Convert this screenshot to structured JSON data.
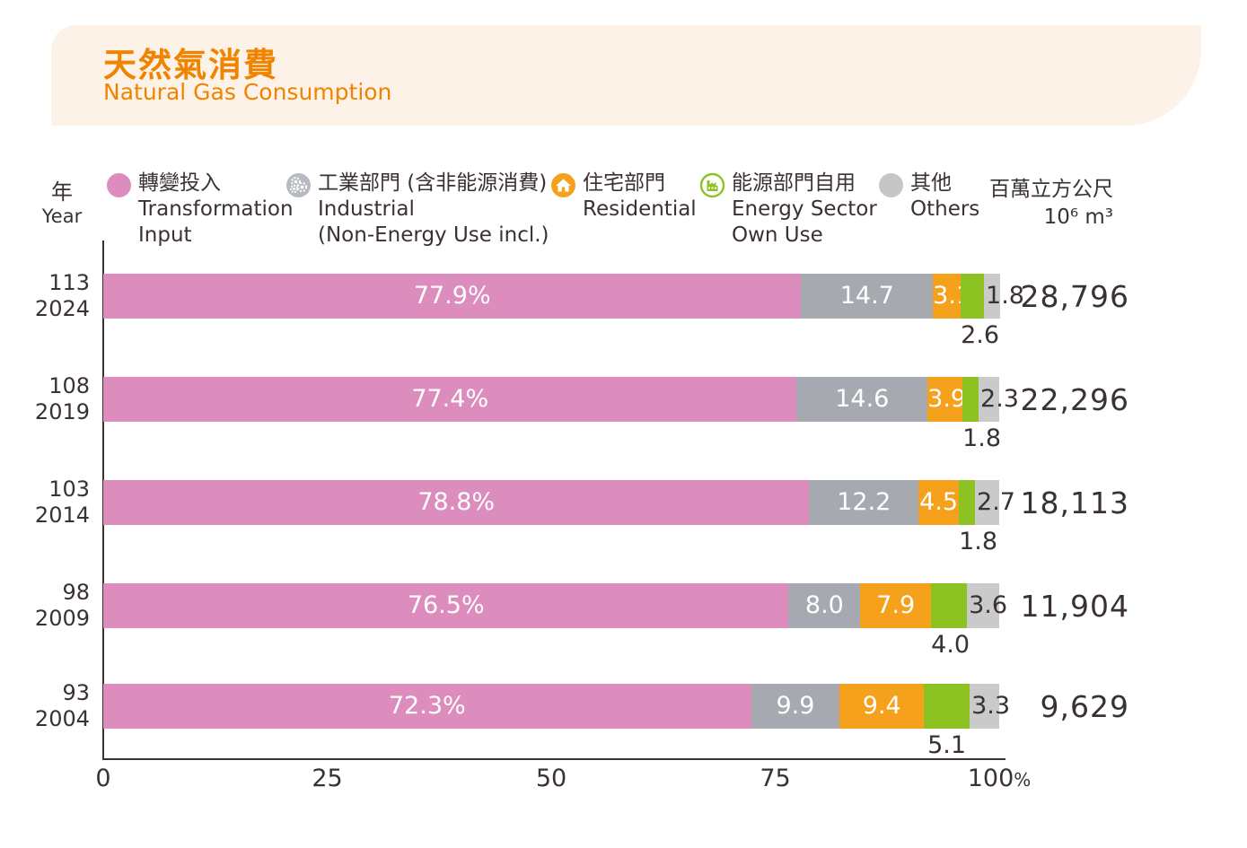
{
  "header": {
    "title_zh": "天然氣消費",
    "title_en": "Natural Gas Consumption"
  },
  "year_axis": {
    "zh": "年",
    "en": "Year"
  },
  "unit_label": {
    "zh": "百萬立方公尺",
    "en": "10⁶ m³"
  },
  "legend": [
    {
      "key": "transformation-input",
      "marker": "circle",
      "color": "#dc8dbe",
      "lines": [
        "轉變投入",
        "Transformation",
        "Input"
      ]
    },
    {
      "key": "industrial",
      "marker": "gears",
      "color": "#b7bbc1",
      "lines": [
        "工業部門 (含非能源消費)",
        "Industrial",
        "(Non-Energy Use incl.)"
      ]
    },
    {
      "key": "residential",
      "marker": "house",
      "color": "#f5a11b",
      "lines": [
        "住宅部門",
        "Residential"
      ]
    },
    {
      "key": "energy-sector-own-use",
      "marker": "factory",
      "color": "#8cc322",
      "lines": [
        "能源部門自用",
        "Energy Sector",
        "Own Use"
      ]
    },
    {
      "key": "others",
      "marker": "circle",
      "color": "#c6c6c6",
      "lines": [
        "其他",
        "Others"
      ]
    }
  ],
  "chart_data": {
    "type": "bar",
    "orientation": "horizontal-stacked",
    "title": "天然氣消費 Natural Gas Consumption",
    "value_unit": "percent share (%)",
    "total_unit": "百萬立方公尺 10⁶ m³",
    "xlim": [
      0,
      100
    ],
    "x_ticks": [
      0,
      25,
      50,
      75,
      100
    ],
    "x_tick_suffix": "%",
    "legend_position": "top",
    "series_names": [
      "轉變投入 Transformation Input",
      "工業部門(含非能源消費) Industrial (Non-Energy Use incl.)",
      "住宅部門 Residential",
      "能源部門自用 Energy Sector Own Use",
      "其他 Others"
    ],
    "series_keys": [
      "transformation-input",
      "industrial",
      "residential",
      "energy-sector-own-use",
      "others"
    ],
    "segment_colors": [
      "#dc8dbe",
      "#a6aab0",
      "#f5a11b",
      "#8cc322",
      "#cacaca"
    ],
    "rows": [
      {
        "year_roc": "113",
        "year_ad": "2024",
        "values": [
          77.9,
          14.7,
          3.1,
          2.6,
          1.8
        ],
        "labels": [
          "77.9%",
          "14.7",
          "3.1",
          "2.6",
          "1.8"
        ],
        "total": "28,796"
      },
      {
        "year_roc": "108",
        "year_ad": "2019",
        "values": [
          77.4,
          14.6,
          3.9,
          1.8,
          2.3
        ],
        "labels": [
          "77.4%",
          "14.6",
          "3.9",
          "1.8",
          "2.3"
        ],
        "total": "22,296"
      },
      {
        "year_roc": "103",
        "year_ad": "2014",
        "values": [
          78.8,
          12.2,
          4.5,
          1.8,
          2.7
        ],
        "labels": [
          "78.8%",
          "12.2",
          "4.5",
          "1.8",
          "2.7"
        ],
        "total": "18,113"
      },
      {
        "year_roc": "98",
        "year_ad": "2009",
        "values": [
          76.5,
          8.0,
          7.9,
          4.0,
          3.6
        ],
        "labels": [
          "76.5%",
          "8.0",
          "7.9",
          "4.0",
          "3.6"
        ],
        "total": "11,904"
      },
      {
        "year_roc": "93",
        "year_ad": "2004",
        "values": [
          72.3,
          9.9,
          9.4,
          5.1,
          3.3
        ],
        "labels": [
          "72.3%",
          "9.9",
          "9.4",
          "5.1",
          "3.3"
        ],
        "total": "9,629"
      }
    ]
  }
}
